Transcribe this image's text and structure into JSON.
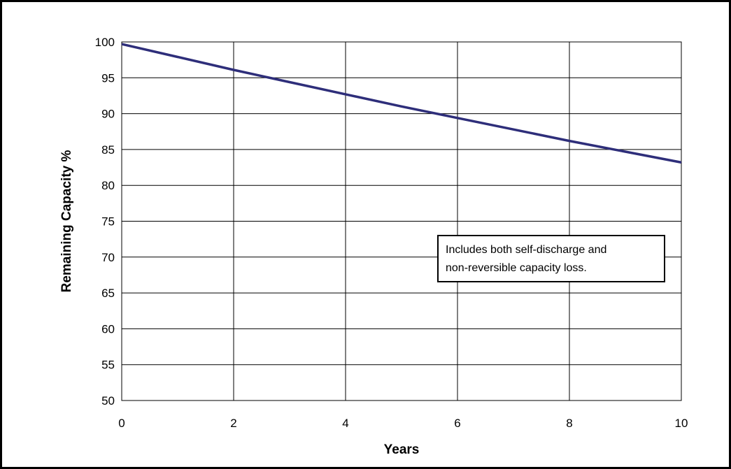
{
  "chart_data": {
    "type": "line",
    "title": "",
    "xlabel": "Years",
    "ylabel": "Remaining Capacity %",
    "xlim": [
      0,
      10
    ],
    "ylim": [
      50,
      100
    ],
    "xticks": [
      "0",
      "2",
      "4",
      "6",
      "8",
      "10"
    ],
    "yticks": [
      "50",
      "55",
      "60",
      "65",
      "70",
      "75",
      "80",
      "85",
      "90",
      "95",
      "100"
    ],
    "grid": true,
    "legend": "none",
    "series": [
      {
        "color": "#2e2e7a",
        "x": [
          0,
          1,
          2,
          3,
          4,
          5,
          6,
          7,
          8,
          9,
          10
        ],
        "y": [
          99.7,
          97.9,
          96.1,
          94.4,
          92.7,
          91.0,
          89.4,
          87.8,
          86.2,
          84.7,
          83.2
        ]
      }
    ],
    "annotation": {
      "lines": [
        "Includes both self-discharge and",
        "non-reversible capacity loss."
      ],
      "position": "right-middle"
    }
  }
}
